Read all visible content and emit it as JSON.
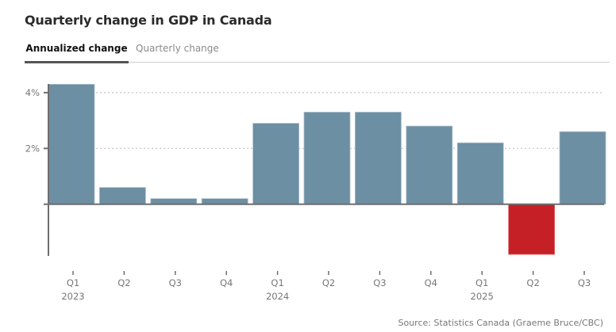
{
  "title": "Quarterly change in GDP in Canada",
  "tabs": [
    {
      "label": "Annualized change",
      "active": true
    },
    {
      "label": "Quarterly change",
      "active": false
    }
  ],
  "source": "Source: Statistics Canada (Graeme Bruce/CBC)",
  "colors": {
    "positive": "#6d8fa4",
    "negative": "#c42026",
    "axis": "#6e6e6e",
    "grid": "#b9b9b9"
  },
  "chart_data": {
    "type": "bar",
    "title": "Quarterly change in GDP in Canada",
    "series_name": "Annualized change",
    "categories": [
      "Q1 2023",
      "Q2 2023",
      "Q3 2023",
      "Q4 2023",
      "Q1 2024",
      "Q2 2024",
      "Q3 2024",
      "Q4 2024",
      "Q1 2025",
      "Q2 2025",
      "Q3 2025"
    ],
    "tick_labels": [
      {
        "quarter": "Q1",
        "year": "2023"
      },
      {
        "quarter": "Q2",
        "year": ""
      },
      {
        "quarter": "Q3",
        "year": ""
      },
      {
        "quarter": "Q4",
        "year": ""
      },
      {
        "quarter": "Q1",
        "year": "2024"
      },
      {
        "quarter": "Q2",
        "year": ""
      },
      {
        "quarter": "Q3",
        "year": ""
      },
      {
        "quarter": "Q4",
        "year": ""
      },
      {
        "quarter": "Q1",
        "year": "2025"
      },
      {
        "quarter": "Q2",
        "year": ""
      },
      {
        "quarter": "Q3",
        "year": ""
      }
    ],
    "values": [
      4.3,
      0.6,
      0.2,
      0.2,
      2.9,
      3.3,
      3.3,
      2.8,
      2.2,
      -1.8,
      2.6
    ],
    "xlabel": "",
    "ylabel": "",
    "ylim": [
      -1.85,
      4.3
    ],
    "yticks": [
      2,
      4
    ],
    "ytick_labels": [
      "2%",
      "4%"
    ],
    "grid": true
  }
}
